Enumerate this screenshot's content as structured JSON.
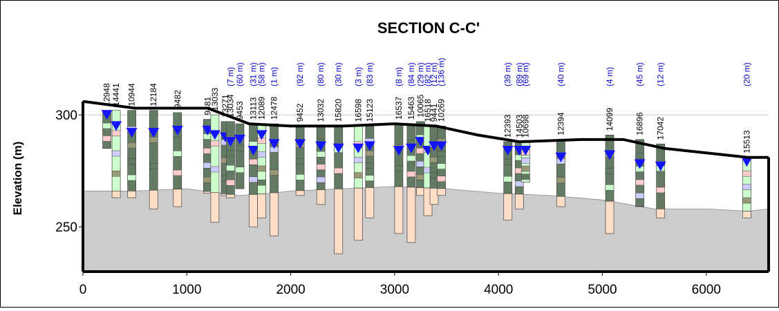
{
  "chart_data": {
    "type": "cross-section",
    "title": "SECTION C-C'",
    "xlabel": "",
    "ylabel": "Elevation (m)",
    "xlim": [
      0,
      6600
    ],
    "ylim": [
      230,
      305
    ],
    "x_ticks": [
      0,
      1000,
      2000,
      3000,
      4000,
      5000,
      6000
    ],
    "y_ticks": [
      250,
      300
    ],
    "grid": "horizontal",
    "ground_surface": [
      [
        0,
        306
      ],
      [
        500,
        303
      ],
      [
        900,
        303
      ],
      [
        1200,
        303
      ],
      [
        1600,
        296
      ],
      [
        2000,
        295
      ],
      [
        2500,
        295
      ],
      [
        3000,
        296
      ],
      [
        3400,
        295
      ],
      [
        3800,
        291
      ],
      [
        4200,
        288
      ],
      [
        4800,
        289
      ],
      [
        5200,
        289
      ],
      [
        5600,
        285
      ],
      [
        6000,
        283
      ],
      [
        6400,
        281
      ],
      [
        6600,
        281
      ]
    ],
    "bedrock_surface": [
      [
        0,
        266
      ],
      [
        500,
        266
      ],
      [
        1000,
        267
      ],
      [
        1500,
        264
      ],
      [
        1800,
        265
      ],
      [
        2000,
        266
      ],
      [
        2500,
        267
      ],
      [
        3000,
        268
      ],
      [
        3500,
        267
      ],
      [
        4000,
        265
      ],
      [
        4500,
        264
      ],
      [
        5000,
        262
      ],
      [
        5500,
        258
      ],
      [
        6000,
        258
      ],
      [
        6400,
        257
      ],
      [
        6600,
        258
      ]
    ],
    "wells": [
      {
        "id": "12948",
        "x": 230,
        "top": 302,
        "bottom": 285,
        "wl": 300
      },
      {
        "id": "14441",
        "x": 320,
        "top": 302,
        "bottom": 263,
        "wl": 295
      },
      {
        "id": "10944",
        "x": 470,
        "top": 302,
        "bottom": 263,
        "wl": 292
      },
      {
        "id": "12184",
        "x": 680,
        "top": 302,
        "bottom": 258,
        "wl": 292
      },
      {
        "id": "9482",
        "x": 910,
        "top": 301,
        "bottom": 259,
        "wl": 293
      },
      {
        "id": "9481",
        "x": 1200,
        "top": 298,
        "bottom": 265,
        "wl": 293
      },
      {
        "id": "13033",
        "x": 1270,
        "top": 300,
        "bottom": 252,
        "wl": 291
      },
      {
        "id": "13271",
        "x": 1370,
        "top": 297,
        "bottom": 264,
        "wl": 290
      },
      {
        "id": "13034",
        "x": 1420,
        "top": 297,
        "bottom": 263,
        "wl": 288,
        "dist": "(7 m)"
      },
      {
        "id": "9453",
        "x": 1510,
        "top": 296,
        "bottom": 267,
        "wl": 289,
        "dist": "(60 m)"
      },
      {
        "id": "13113",
        "x": 1640,
        "top": 296,
        "bottom": 250,
        "wl": 284,
        "dist": "(31 m)"
      },
      {
        "id": "12089",
        "x": 1720,
        "top": 296,
        "bottom": 254,
        "wl": 291,
        "dist": "(58 m)"
      },
      {
        "id": "12478",
        "x": 1840,
        "top": 296,
        "bottom": 246,
        "wl": 287,
        "dist": "(1 m)"
      },
      {
        "id": "9452",
        "x": 2090,
        "top": 295,
        "bottom": 264,
        "wl": 287,
        "dist": "(92 m)"
      },
      {
        "id": "13032",
        "x": 2290,
        "top": 295,
        "bottom": 260,
        "wl": 286,
        "dist": "(80 m)"
      },
      {
        "id": "15820",
        "x": 2460,
        "top": 295,
        "bottom": 238,
        "wl": 285,
        "dist": "(30 m)"
      },
      {
        "id": "16598",
        "x": 2650,
        "top": 295,
        "bottom": 244,
        "wl": 285,
        "dist": "(3 m)"
      },
      {
        "id": "15123",
        "x": 2760,
        "top": 295,
        "bottom": 254,
        "wl": 286,
        "dist": "(83 m)"
      },
      {
        "id": "16537",
        "x": 3040,
        "top": 296,
        "bottom": 247,
        "wl": 284,
        "dist": "(8 m)"
      },
      {
        "id": "15463",
        "x": 3160,
        "top": 296,
        "bottom": 243,
        "wl": 285,
        "dist": "(84 m)"
      },
      {
        "id": "10065",
        "x": 3250,
        "top": 297,
        "bottom": 264,
        "wl": 288,
        "dist": "(29 m)"
      },
      {
        "id": "16518",
        "x": 3320,
        "top": 295,
        "bottom": 255,
        "wl": 284,
        "dist": "(82 m)"
      },
      {
        "id": "9441",
        "x": 3380,
        "top": 295,
        "bottom": 260,
        "wl": 286,
        "dist": "(12 m)"
      },
      {
        "id": "10269",
        "x": 3450,
        "top": 295,
        "bottom": 264,
        "wl": 286,
        "dist": "(136 m)"
      },
      {
        "id": "12393",
        "x": 4090,
        "top": 288,
        "bottom": 253,
        "wl": 284,
        "dist": "(39 m)"
      },
      {
        "id": "14503",
        "x": 4200,
        "top": 288,
        "bottom": 258,
        "wl": 284,
        "dist": "(89 m)"
      },
      {
        "id": "10698",
        "x": 4260,
        "top": 288,
        "bottom": 270,
        "wl": 284,
        "dist": "(69 m)"
      },
      {
        "id": "12394",
        "x": 4600,
        "top": 289,
        "bottom": 259,
        "wl": 281,
        "dist": "(40 m)"
      },
      {
        "id": "14099",
        "x": 5070,
        "top": 291,
        "bottom": 247,
        "wl": 282,
        "dist": "(4 m)"
      },
      {
        "id": "16896",
        "x": 5360,
        "top": 289,
        "bottom": 259,
        "wl": 278,
        "dist": "(45 m)"
      },
      {
        "id": "17042",
        "x": 5560,
        "top": 287,
        "bottom": 254,
        "wl": 277,
        "dist": "(12 m)"
      },
      {
        "id": "15513",
        "x": 6390,
        "top": 281,
        "bottom": 254,
        "wl": 279,
        "dist": "(20 m)"
      }
    ],
    "colors": {
      "bedrock": "#cccccc",
      "sediment": "#637b62",
      "sand_light": "#ccffcc",
      "clay_pink": "#ffcccc",
      "gravel_blue": "#ccccff",
      "tan": "#999977",
      "bedrock_core": "#ffdec8",
      "water_level": "#1414ff",
      "distance_label": "#0000cc",
      "grid": "#c8c8c8"
    }
  }
}
